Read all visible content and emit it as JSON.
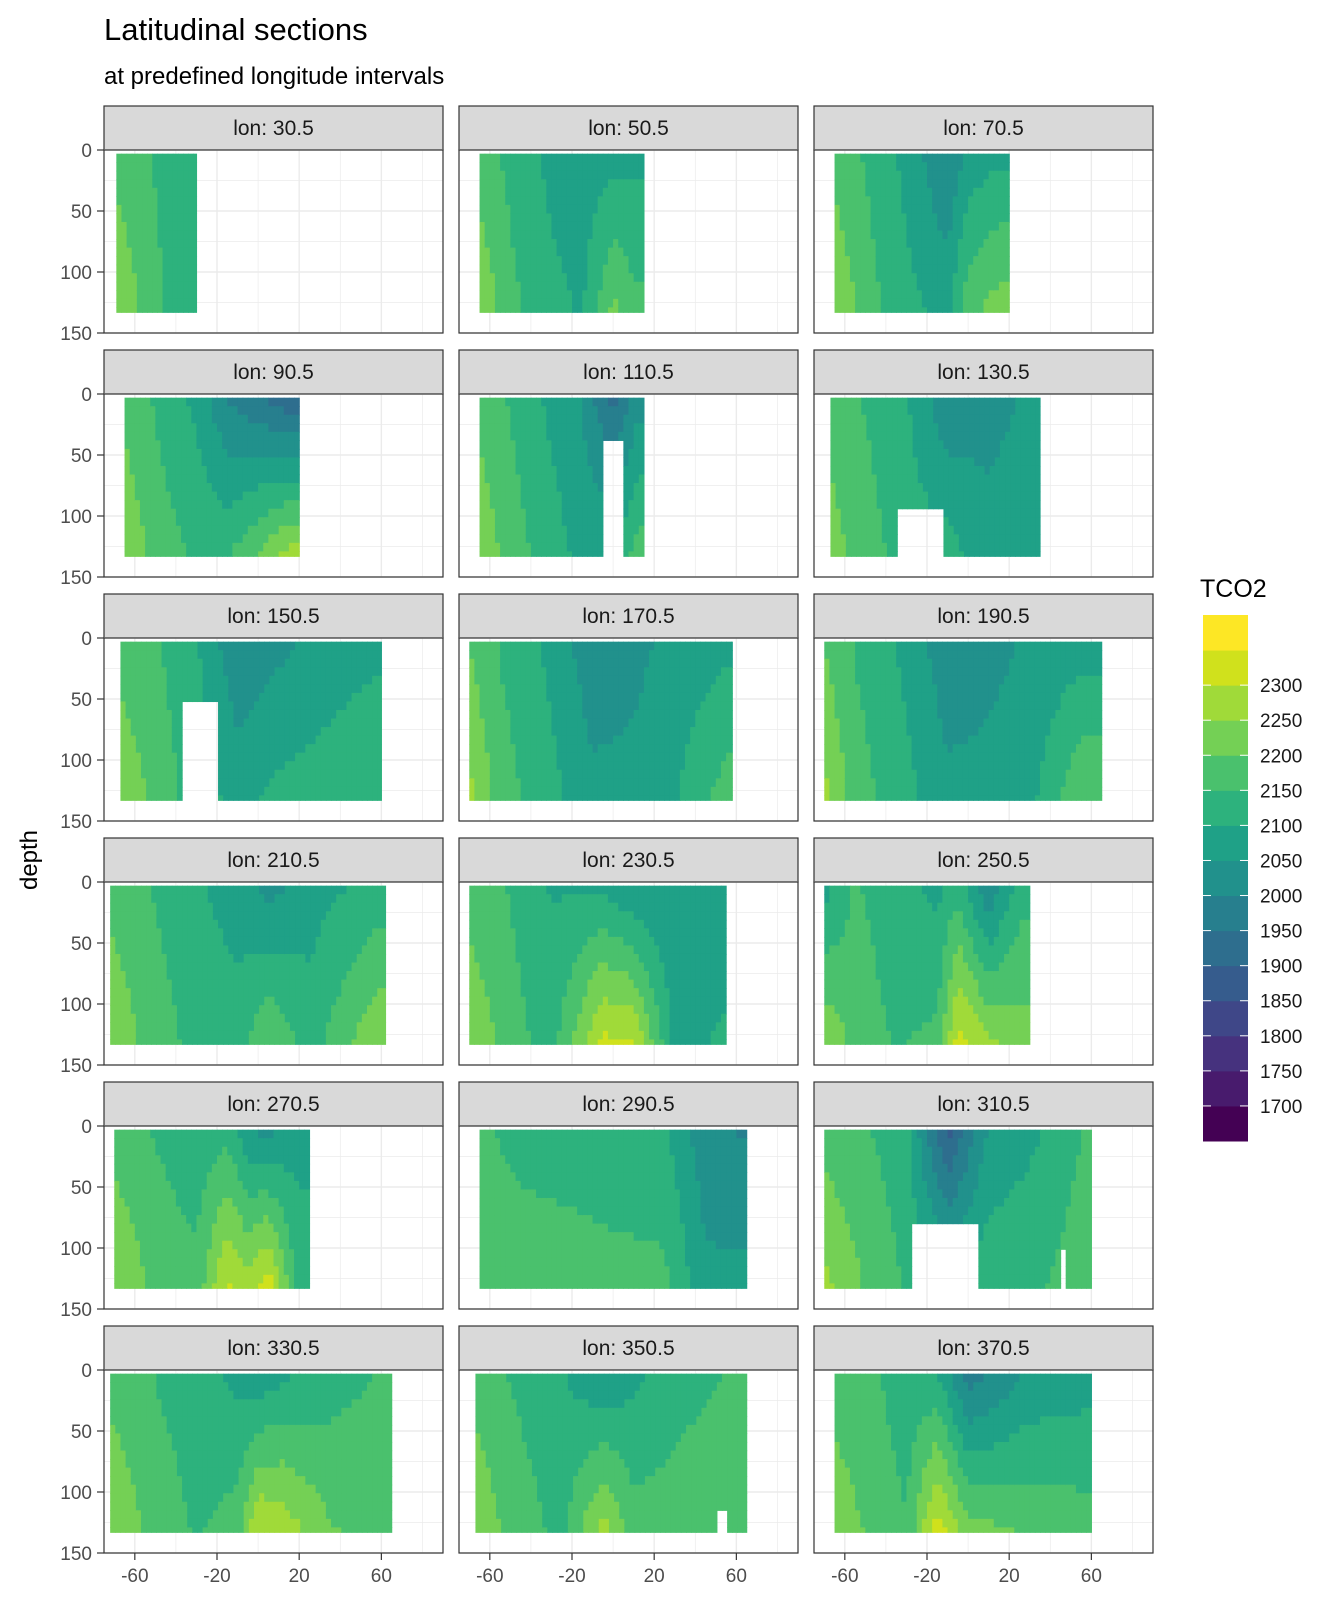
{
  "chart_data": {
    "type": "heatmap",
    "title": "Latitudinal sections",
    "subtitle": "at predefined longitude intervals",
    "xlabel": "",
    "ylabel": "depth",
    "facet_label_prefix": "lon: ",
    "xlim": [
      -75,
      90
    ],
    "ylim": [
      0,
      150
    ],
    "y_reversed": true,
    "x_ticks": [
      -60,
      -20,
      20,
      60
    ],
    "y_ticks": [
      0,
      50,
      100,
      150
    ],
    "grid": true,
    "legend": {
      "title": "TCO2",
      "position": "right",
      "breaks": [
        1675,
        1725,
        1775,
        1825,
        1875,
        1925,
        1975,
        2025,
        2075,
        2125,
        2175,
        2225,
        2275,
        2325
      ],
      "labels": [
        "1700",
        "1750",
        "1800",
        "1850",
        "1900",
        "1950",
        "2000",
        "2050",
        "2100",
        "2150",
        "2200",
        "2250",
        "2300"
      ],
      "colors": [
        "#440154",
        "#481b6d",
        "#46327e",
        "#3f4788",
        "#365c8d",
        "#2e6e8e",
        "#277f8e",
        "#21918c",
        "#1fa187",
        "#2db27d",
        "#4ac16d",
        "#74d055",
        "#a0da39",
        "#d0e11c",
        "#fde725"
      ]
    },
    "panels": [
      {
        "lon": "30.5",
        "lat_range": [
          -69,
          -30
        ],
        "depth_max": 133,
        "base": 2125,
        "notches": [],
        "columns": [
          {
            "lat": -69,
            "top": 2150,
            "bottom": 2230
          },
          {
            "lat": -55,
            "top": 2130,
            "bottom": 2160
          },
          {
            "lat": -45,
            "top": 2110,
            "bottom": 2120
          },
          {
            "lat": -35,
            "top": 2080,
            "bottom": 2090
          }
        ]
      },
      {
        "lon": "50.5",
        "lat_range": [
          -65,
          15
        ],
        "depth_max": 133,
        "base": 2100,
        "notches": [],
        "columns": [
          {
            "lat": -65,
            "top": 2150,
            "bottom": 2220
          },
          {
            "lat": -50,
            "top": 2110,
            "bottom": 2140
          },
          {
            "lat": -30,
            "top": 2060,
            "bottom": 2090
          },
          {
            "lat": -15,
            "top": 2040,
            "bottom": 2070
          },
          {
            "lat": 0,
            "top": 2050,
            "bottom": 2190
          },
          {
            "lat": 10,
            "top": 2060,
            "bottom": 2140
          }
        ]
      },
      {
        "lon": "70.5",
        "lat_range": [
          -65,
          20
        ],
        "depth_max": 133,
        "base": 2090,
        "notches": [],
        "columns": [
          {
            "lat": -65,
            "top": 2150,
            "bottom": 2230
          },
          {
            "lat": -50,
            "top": 2120,
            "bottom": 2150
          },
          {
            "lat": -30,
            "top": 2060,
            "bottom": 2090
          },
          {
            "lat": -10,
            "top": 1970,
            "bottom": 2060
          },
          {
            "lat": 0,
            "top": 2040,
            "bottom": 2160
          },
          {
            "lat": 15,
            "top": 2060,
            "bottom": 2200
          }
        ]
      },
      {
        "lon": "90.5",
        "lat_range": [
          -65,
          20
        ],
        "depth_max": 133,
        "base": 2080,
        "notches": [],
        "columns": [
          {
            "lat": -65,
            "top": 2150,
            "bottom": 2230
          },
          {
            "lat": -50,
            "top": 2120,
            "bottom": 2150
          },
          {
            "lat": -30,
            "top": 2060,
            "bottom": 2120
          },
          {
            "lat": -15,
            "top": 1970,
            "bottom": 2120
          },
          {
            "lat": 0,
            "top": 1930,
            "bottom": 2180
          },
          {
            "lat": 15,
            "top": 1880,
            "bottom": 2250
          }
        ]
      },
      {
        "lon": "110.5",
        "lat_range": [
          -65,
          15
        ],
        "depth_max": 133,
        "base": 2080,
        "notches": [
          {
            "lat": [
              -6,
              5
            ],
            "depth": [
              40,
              133
            ]
          }
        ],
        "columns": [
          {
            "lat": -65,
            "top": 2150,
            "bottom": 2220
          },
          {
            "lat": -50,
            "top": 2120,
            "bottom": 2150
          },
          {
            "lat": -30,
            "top": 2060,
            "bottom": 2100
          },
          {
            "lat": -15,
            "top": 2020,
            "bottom": 2060
          },
          {
            "lat": 0,
            "top": 1900,
            "bottom": 2080
          },
          {
            "lat": 12,
            "top": 2000,
            "bottom": 2150
          }
        ]
      },
      {
        "lon": "130.5",
        "lat_range": [
          -67,
          35
        ],
        "depth_max": 133,
        "base": 2075,
        "notches": [
          {
            "lat": [
              -35,
              -12
            ],
            "depth": [
              95,
              133
            ]
          }
        ],
        "columns": [
          {
            "lat": -67,
            "top": 2150,
            "bottom": 2200
          },
          {
            "lat": -50,
            "top": 2120,
            "bottom": 2150
          },
          {
            "lat": -30,
            "top": 2080,
            "bottom": 2100
          },
          {
            "lat": -10,
            "top": 1980,
            "bottom": 2100
          },
          {
            "lat": 10,
            "top": 2010,
            "bottom": 2040
          },
          {
            "lat": 30,
            "top": 2030,
            "bottom": 2050
          }
        ]
      },
      {
        "lon": "150.5",
        "lat_range": [
          -67,
          60
        ],
        "depth_max": 133,
        "base": 2090,
        "notches": [
          {
            "lat": [
              -37,
              -20
            ],
            "depth": [
              50,
              133
            ]
          }
        ],
        "columns": [
          {
            "lat": -67,
            "top": 2150,
            "bottom": 2220
          },
          {
            "lat": -50,
            "top": 2130,
            "bottom": 2160
          },
          {
            "lat": -30,
            "top": 2080,
            "bottom": 2100
          },
          {
            "lat": -10,
            "top": 1980,
            "bottom": 2060
          },
          {
            "lat": 10,
            "top": 2010,
            "bottom": 2090
          },
          {
            "lat": 30,
            "top": 2040,
            "bottom": 2100
          },
          {
            "lat": 55,
            "top": 2060,
            "bottom": 2120
          }
        ]
      },
      {
        "lon": "170.5",
        "lat_range": [
          -70,
          58
        ],
        "depth_max": 133,
        "base": 2080,
        "notches": [],
        "columns": [
          {
            "lat": -70,
            "top": 2170,
            "bottom": 2240
          },
          {
            "lat": -55,
            "top": 2120,
            "bottom": 2150
          },
          {
            "lat": -30,
            "top": 2060,
            "bottom": 2090
          },
          {
            "lat": -10,
            "top": 1990,
            "bottom": 2040
          },
          {
            "lat": 10,
            "top": 2010,
            "bottom": 2040
          },
          {
            "lat": 30,
            "top": 2040,
            "bottom": 2070
          },
          {
            "lat": 55,
            "top": 2060,
            "bottom": 2150
          }
        ]
      },
      {
        "lon": "190.5",
        "lat_range": [
          -70,
          65
        ],
        "depth_max": 133,
        "base": 2080,
        "notches": [],
        "columns": [
          {
            "lat": -70,
            "top": 2170,
            "bottom": 2240
          },
          {
            "lat": -55,
            "top": 2120,
            "bottom": 2150
          },
          {
            "lat": -30,
            "top": 2060,
            "bottom": 2090
          },
          {
            "lat": -10,
            "top": 1990,
            "bottom": 2040
          },
          {
            "lat": 10,
            "top": 2010,
            "bottom": 2040
          },
          {
            "lat": 30,
            "top": 2030,
            "bottom": 2060
          },
          {
            "lat": 55,
            "top": 2050,
            "bottom": 2170
          }
        ]
      },
      {
        "lon": "210.5",
        "lat_range": [
          -72,
          62
        ],
        "depth_max": 133,
        "base": 2100,
        "notches": [],
        "columns": [
          {
            "lat": -72,
            "top": 2150,
            "bottom": 2230
          },
          {
            "lat": -55,
            "top": 2130,
            "bottom": 2160
          },
          {
            "lat": -30,
            "top": 2080,
            "bottom": 2110
          },
          {
            "lat": -10,
            "top": 2050,
            "bottom": 2100
          },
          {
            "lat": 5,
            "top": 2000,
            "bottom": 2180
          },
          {
            "lat": 25,
            "top": 2050,
            "bottom": 2100
          },
          {
            "lat": 58,
            "top": 2090,
            "bottom": 2220
          }
        ]
      },
      {
        "lon": "230.5",
        "lat_range": [
          -70,
          55
        ],
        "depth_max": 133,
        "base": 2080,
        "notches": [],
        "columns": [
          {
            "lat": -70,
            "top": 2150,
            "bottom": 2220
          },
          {
            "lat": -50,
            "top": 2120,
            "bottom": 2150
          },
          {
            "lat": -30,
            "top": 2070,
            "bottom": 2100
          },
          {
            "lat": -5,
            "top": 2060,
            "bottom": 2290
          },
          {
            "lat": 10,
            "top": 2020,
            "bottom": 2280
          },
          {
            "lat": 30,
            "top": 2030,
            "bottom": 2060
          },
          {
            "lat": 52,
            "top": 2050,
            "bottom": 2080
          }
        ]
      },
      {
        "lon": "250.5",
        "lat_range": [
          -70,
          30
        ],
        "depth_max": 133,
        "base": 2100,
        "notches": [],
        "columns": [
          {
            "lat": -70,
            "top": 2050,
            "bottom": 2220
          },
          {
            "lat": -55,
            "top": 2130,
            "bottom": 2160
          },
          {
            "lat": -35,
            "top": 2090,
            "bottom": 2120
          },
          {
            "lat": -15,
            "top": 2060,
            "bottom": 2140
          },
          {
            "lat": -5,
            "top": 2100,
            "bottom": 2300
          },
          {
            "lat": 10,
            "top": 1970,
            "bottom": 2240
          },
          {
            "lat": 25,
            "top": 2100,
            "bottom": 2200
          }
        ]
      },
      {
        "lon": "270.5",
        "lat_range": [
          -70,
          25
        ],
        "depth_max": 133,
        "base": 2120,
        "notches": [],
        "columns": [
          {
            "lat": -70,
            "top": 2150,
            "bottom": 2230
          },
          {
            "lat": -50,
            "top": 2120,
            "bottom": 2160
          },
          {
            "lat": -30,
            "top": 2090,
            "bottom": 2140
          },
          {
            "lat": -15,
            "top": 2100,
            "bottom": 2290
          },
          {
            "lat": -5,
            "top": 2030,
            "bottom": 2250
          },
          {
            "lat": 5,
            "top": 2000,
            "bottom": 2310
          },
          {
            "lat": 20,
            "top": 2060,
            "bottom": 2100
          }
        ]
      },
      {
        "lon": "290.5",
        "lat_range": [
          -65,
          65
        ],
        "depth_max": 133,
        "base": 2110,
        "notches": [],
        "columns": [
          {
            "lat": -65,
            "top": 2130,
            "bottom": 2170
          },
          {
            "lat": -45,
            "top": 2110,
            "bottom": 2150
          },
          {
            "lat": -20,
            "top": 2100,
            "bottom": 2150
          },
          {
            "lat": 0,
            "top": 2080,
            "bottom": 2150
          },
          {
            "lat": 25,
            "top": 2080,
            "bottom": 2140
          },
          {
            "lat": 45,
            "top": 1990,
            "bottom": 2040
          },
          {
            "lat": 62,
            "top": 1970,
            "bottom": 2040
          }
        ]
      },
      {
        "lon": "310.5",
        "lat_range": [
          -70,
          60
        ],
        "depth_max": 133,
        "base": 2100,
        "notches": [
          {
            "lat": [
              -27,
              5
            ],
            "depth": [
              78,
              133
            ]
          },
          {
            "lat": [
              45,
              48
            ],
            "depth": [
              100,
              133
            ]
          }
        ],
        "columns": [
          {
            "lat": -70,
            "top": 2150,
            "bottom": 2240
          },
          {
            "lat": -50,
            "top": 2130,
            "bottom": 2170
          },
          {
            "lat": -30,
            "top": 2090,
            "bottom": 2120
          },
          {
            "lat": -10,
            "top": 1850,
            "bottom": 2100
          },
          {
            "lat": 10,
            "top": 2030,
            "bottom": 2110
          },
          {
            "lat": 35,
            "top": 2070,
            "bottom": 2120
          },
          {
            "lat": 58,
            "top": 2130,
            "bottom": 2160
          }
        ]
      },
      {
        "lon": "330.5",
        "lat_range": [
          -72,
          65
        ],
        "depth_max": 133,
        "base": 2110,
        "notches": [],
        "columns": [
          {
            "lat": -72,
            "top": 2150,
            "bottom": 2230
          },
          {
            "lat": -55,
            "top": 2130,
            "bottom": 2170
          },
          {
            "lat": -30,
            "top": 2090,
            "bottom": 2120
          },
          {
            "lat": -10,
            "top": 2060,
            "bottom": 2150
          },
          {
            "lat": 0,
            "top": 2030,
            "bottom": 2280
          },
          {
            "lat": 12,
            "top": 2060,
            "bottom": 2260
          },
          {
            "lat": 35,
            "top": 2100,
            "bottom": 2180
          },
          {
            "lat": 62,
            "top": 2130,
            "bottom": 2160
          }
        ]
      },
      {
        "lon": "350.5",
        "lat_range": [
          -67,
          65
        ],
        "depth_max": 133,
        "base": 2100,
        "notches": [
          {
            "lat": [
              50,
              55
            ],
            "depth": [
              112,
              133
            ]
          }
        ],
        "columns": [
          {
            "lat": -67,
            "top": 2150,
            "bottom": 2220
          },
          {
            "lat": -50,
            "top": 2120,
            "bottom": 2160
          },
          {
            "lat": -25,
            "top": 2080,
            "bottom": 2110
          },
          {
            "lat": -5,
            "top": 2020,
            "bottom": 2250
          },
          {
            "lat": 10,
            "top": 2060,
            "bottom": 2150
          },
          {
            "lat": 35,
            "top": 2110,
            "bottom": 2150
          },
          {
            "lat": 62,
            "top": 2130,
            "bottom": 2150
          }
        ]
      },
      {
        "lon": "370.5",
        "lat_range": [
          -65,
          60
        ],
        "depth_max": 133,
        "base": 2110,
        "notches": [],
        "columns": [
          {
            "lat": -65,
            "top": 2150,
            "bottom": 2210
          },
          {
            "lat": -45,
            "top": 2130,
            "bottom": 2160
          },
          {
            "lat": -30,
            "top": 2090,
            "bottom": 2130
          },
          {
            "lat": -15,
            "top": 2070,
            "bottom": 2310
          },
          {
            "lat": 0,
            "top": 1940,
            "bottom": 2200
          },
          {
            "lat": 30,
            "top": 2030,
            "bottom": 2170
          },
          {
            "lat": 58,
            "top": 2050,
            "bottom": 2150
          }
        ]
      }
    ]
  }
}
